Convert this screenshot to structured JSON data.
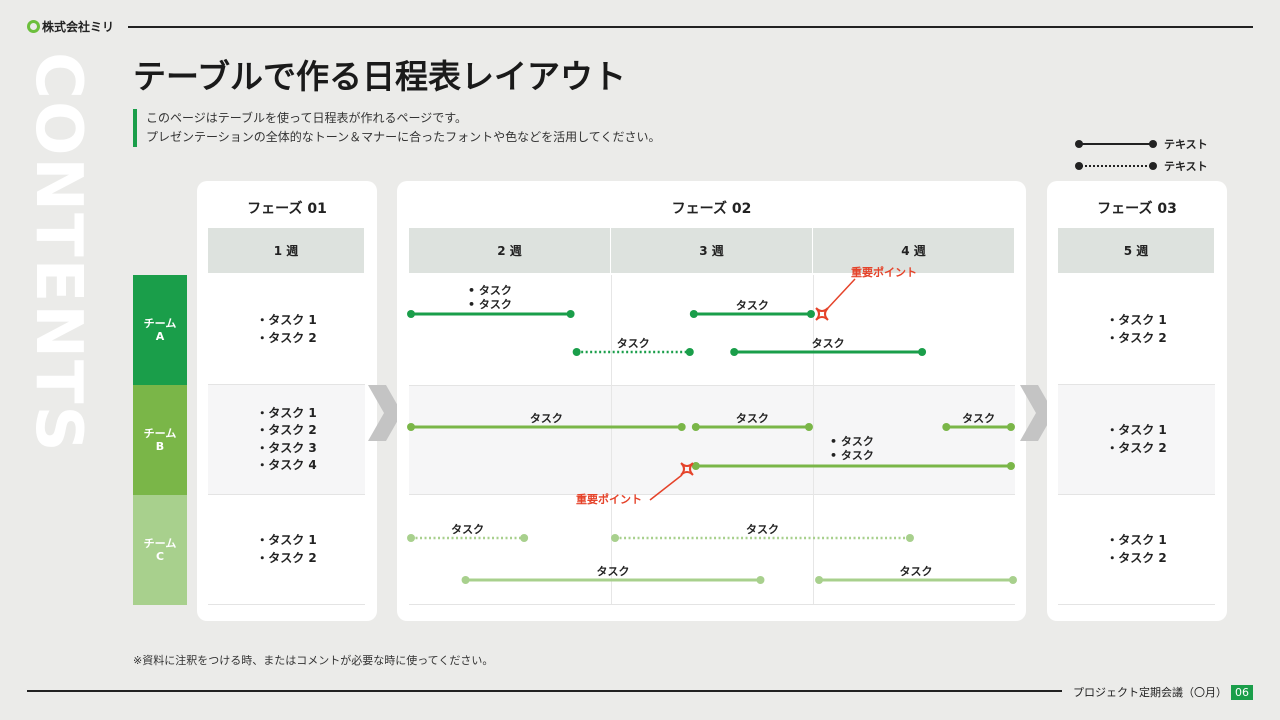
{
  "header": {
    "company": "株式会社ミリ",
    "side_label": "CONTENTS"
  },
  "title": "テーブルで作る日程表レイアウト",
  "description": [
    "このページはテーブルを使って日程表が作れるページです。",
    "プレゼンテーションの全体的なトーン＆マナーに合ったフォントや色などを活用してください。"
  ],
  "legend": [
    {
      "style": "solid",
      "label": "テキスト"
    },
    {
      "style": "dotted",
      "label": "テキスト"
    }
  ],
  "colors": {
    "accent": "#1a9e4a",
    "teamA": "#1a9e4a",
    "teamB": "#7ab648",
    "teamC": "#a8d08d",
    "important": "#e5432a"
  },
  "teams": [
    {
      "label": "チーム",
      "code": "A"
    },
    {
      "label": "チーム",
      "code": "B"
    },
    {
      "label": "チーム",
      "code": "C"
    }
  ],
  "phases": [
    {
      "title": "フェーズ 01",
      "weeks": [
        "1 週"
      ]
    },
    {
      "title": "フェーズ 02",
      "weeks": [
        "2 週",
        "3 週",
        "4 週"
      ]
    },
    {
      "title": "フェーズ 03",
      "weeks": [
        "5 週"
      ]
    }
  ],
  "phase1_tasks": [
    [
      "・タスク 1",
      "・タスク 2"
    ],
    [
      "・タスク 1",
      "・タスク 2",
      "・タスク 3",
      "・タスク 4"
    ],
    [
      "・タスク 1",
      "・タスク 2"
    ]
  ],
  "phase3_tasks": [
    [
      "・タスク 1",
      "・タスク 2"
    ],
    [
      "・タスク 1",
      "・タスク 2"
    ],
    [
      "・タスク 1",
      "・タスク 2"
    ]
  ],
  "gantt": {
    "bars": [
      {
        "team": 0,
        "lane": 0,
        "start": 2.01,
        "end": 2.8,
        "style": "solid",
        "label": ""
      },
      {
        "team": 0,
        "lane": 0,
        "start": 3.41,
        "end": 3.99,
        "style": "solid",
        "label": "タスク"
      },
      {
        "team": 0,
        "lane": 1,
        "start": 2.83,
        "end": 3.39,
        "style": "dotted",
        "label": "タスク"
      },
      {
        "team": 0,
        "lane": 1,
        "start": 3.61,
        "end": 4.54,
        "style": "solid",
        "label": "タスク"
      },
      {
        "team": 1,
        "lane": 0,
        "start": 2.01,
        "end": 3.35,
        "style": "solid",
        "label": "タスク"
      },
      {
        "team": 1,
        "lane": 0,
        "start": 3.42,
        "end": 3.98,
        "style": "solid",
        "label": "タスク"
      },
      {
        "team": 1,
        "lane": 0,
        "start": 4.66,
        "end": 4.98,
        "style": "solid",
        "label": "タスク"
      },
      {
        "team": 1,
        "lane": 1,
        "start": 3.42,
        "end": 4.98,
        "style": "solid",
        "label": ""
      },
      {
        "team": 2,
        "lane": 0,
        "start": 2.01,
        "end": 2.57,
        "style": "dotted",
        "label": "タスク"
      },
      {
        "team": 2,
        "lane": 0,
        "start": 3.02,
        "end": 4.48,
        "style": "dotted",
        "label": "タスク"
      },
      {
        "team": 2,
        "lane": 1,
        "start": 2.28,
        "end": 3.74,
        "style": "solid",
        "label": "タスク"
      },
      {
        "team": 2,
        "lane": 1,
        "start": 4.03,
        "end": 4.99,
        "style": "solid",
        "label": "タスク"
      }
    ],
    "bullet_notes": [
      [
        "• タスク",
        "• タスク"
      ],
      [
        "• タスク",
        "• タスク"
      ]
    ],
    "important_label": "重要ポイント"
  },
  "footnote": "※資料に注釈をつける時、またはコメントが必要な時に使ってください。",
  "footer": {
    "meeting": "プロジェクト定期会議（〇月）",
    "page": "06"
  }
}
